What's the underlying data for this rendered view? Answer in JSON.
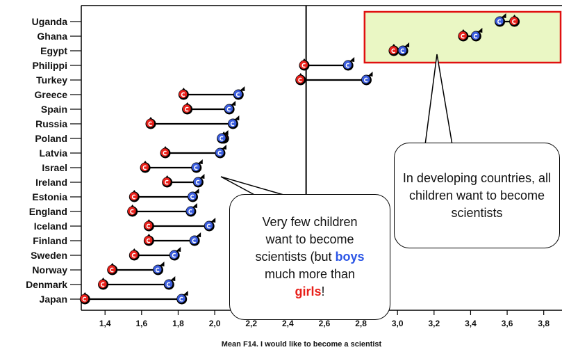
{
  "chart_data": {
    "type": "scatter",
    "title": "",
    "xlabel": "Mean F14. I would like to become a scientist",
    "ylabel": "",
    "xlim": [
      1.27,
      3.9
    ],
    "x_ticks": [
      "1,4",
      "1,6",
      "1,8",
      "2,0",
      "2,2",
      "2,4",
      "2,6",
      "2,8",
      "3,0",
      "3,2",
      "3,4",
      "3,6",
      "3,8"
    ],
    "x_tick_values": [
      1.4,
      1.6,
      1.8,
      2.0,
      2.2,
      2.4,
      2.6,
      2.8,
      3.0,
      3.2,
      3.4,
      3.6,
      3.8
    ],
    "reference_line_x": 2.5,
    "grid": false,
    "girl_color": "#e8201a",
    "boy_color": "#3b5ddd",
    "highlight_box": {
      "x_range": [
        2.82,
        3.92
      ],
      "y_from": "Uganda",
      "y_to": "Philippi",
      "fill": "#eaf7c4",
      "stroke": "#e01010"
    },
    "categories": [
      "Uganda",
      "Ghana",
      "Egypt",
      "Philippi",
      "Turkey",
      "Greece",
      "Spain",
      "Russia",
      "Poland",
      "Latvia",
      "Israel",
      "Ireland",
      "Estonia",
      "England",
      "Iceland",
      "Finland",
      "Sweden",
      "Norway",
      "Denmark",
      "Japan"
    ],
    "series": [
      {
        "values": [
          3.64,
          3.36,
          2.98,
          2.49,
          2.47,
          1.83,
          1.85,
          1.65,
          2.05,
          1.73,
          1.62,
          1.74,
          1.56,
          1.55,
          1.64,
          1.64,
          1.56,
          1.44,
          1.39,
          1.29
        ]
      },
      {
        "values": [
          3.56,
          3.43,
          3.03,
          2.73,
          2.83,
          2.13,
          2.08,
          2.1,
          2.04,
          2.03,
          1.9,
          1.91,
          1.88,
          1.87,
          1.97,
          1.89,
          1.78,
          1.69,
          1.75,
          1.82
        ]
      }
    ]
  },
  "callouts": {
    "developing": "In developing countries, all children want to become scientists",
    "few_prefix": "Very few children want to become scientists (but ",
    "few_boys": "boys",
    "few_middle": " much more than ",
    "few_girls": "girls",
    "few_suffix": "!"
  }
}
